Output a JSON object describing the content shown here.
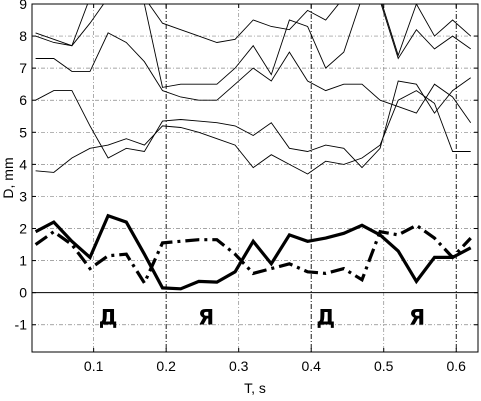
{
  "chart_data": {
    "type": "line",
    "title": "",
    "xlabel": "T, s",
    "ylabel": "D, mm",
    "xlim": [
      0.015,
      0.63
    ],
    "ylim": [
      -1.85,
      9
    ],
    "grid": true,
    "xticks": [
      0.1,
      0.2,
      0.3,
      0.4,
      0.5,
      0.6
    ],
    "xtick_labels": [
      "0.1",
      "0.2",
      "0.3",
      "0.4",
      "0.5",
      "0.6"
    ],
    "yticks": [
      -1,
      0,
      1,
      2,
      3,
      4,
      5,
      6,
      7,
      8,
      9
    ],
    "ytick_labels": [
      "-1",
      "0",
      "1",
      "2",
      "3",
      "4",
      "5",
      "6",
      "7",
      "8",
      "9"
    ],
    "vlines": [
      0.2,
      0.4,
      0.6
    ],
    "hline": 0,
    "annotations": [
      {
        "text": "Д",
        "x": 0.12,
        "y": -0.75
      },
      {
        "text": "Я",
        "x": 0.255,
        "y": -0.75
      },
      {
        "text": "Д",
        "x": 0.42,
        "y": -0.75
      },
      {
        "text": "Я",
        "x": 0.546,
        "y": -0.75
      }
    ],
    "series": [
      {
        "style": "solid-thick",
        "x": [
          0.02,
          0.045,
          0.07,
          0.095,
          0.12,
          0.145,
          0.17,
          0.195,
          0.22,
          0.245,
          0.27,
          0.295,
          0.32,
          0.345,
          0.37,
          0.395,
          0.42,
          0.445,
          0.47,
          0.495,
          0.52,
          0.545,
          0.57,
          0.595,
          0.62
        ],
        "y": [
          1.9,
          2.2,
          1.6,
          1.1,
          2.4,
          2.2,
          1.2,
          0.15,
          0.12,
          0.35,
          0.33,
          0.65,
          1.6,
          0.9,
          1.8,
          1.6,
          1.7,
          1.85,
          2.1,
          1.8,
          1.3,
          0.35,
          1.1,
          1.1,
          1.4
        ]
      },
      {
        "style": "dashdot-thick",
        "x": [
          0.02,
          0.045,
          0.07,
          0.095,
          0.12,
          0.145,
          0.17,
          0.195,
          0.22,
          0.245,
          0.27,
          0.295,
          0.32,
          0.345,
          0.37,
          0.395,
          0.42,
          0.445,
          0.47,
          0.495,
          0.52,
          0.545,
          0.57,
          0.595,
          0.62
        ],
        "y": [
          1.5,
          1.9,
          1.5,
          0.75,
          1.15,
          1.2,
          0.3,
          1.55,
          1.6,
          1.65,
          1.65,
          1.2,
          0.6,
          0.75,
          0.9,
          0.65,
          0.6,
          0.75,
          0.4,
          1.9,
          1.8,
          2.1,
          1.7,
          1.1,
          1.7
        ]
      },
      {
        "style": "thin",
        "x": [
          0.02,
          0.045,
          0.07,
          0.095,
          0.12,
          0.145,
          0.17,
          0.195,
          0.22,
          0.245,
          0.27,
          0.295,
          0.32,
          0.345,
          0.37,
          0.395,
          0.42,
          0.445,
          0.47,
          0.495,
          0.52,
          0.545,
          0.57,
          0.595,
          0.62
        ],
        "y": [
          3.8,
          3.75,
          4.2,
          4.5,
          4.6,
          4.8,
          4.6,
          5.2,
          5.15,
          5.0,
          4.8,
          4.6,
          3.9,
          4.3,
          4.0,
          3.7,
          4.1,
          4.0,
          4.2,
          4.6,
          6.0,
          6.3,
          5.9,
          4.4,
          4.4
        ]
      },
      {
        "style": "thin",
        "x": [
          0.02,
          0.045,
          0.07,
          0.095,
          0.12,
          0.145,
          0.17,
          0.195,
          0.22,
          0.245,
          0.27,
          0.295,
          0.32,
          0.345,
          0.37,
          0.395,
          0.42,
          0.445,
          0.47,
          0.495,
          0.52,
          0.545,
          0.57,
          0.595,
          0.62
        ],
        "y": [
          6.0,
          6.3,
          6.3,
          5.2,
          4.2,
          4.5,
          4.4,
          5.35,
          5.4,
          5.35,
          5.3,
          5.2,
          4.9,
          5.3,
          4.5,
          4.4,
          4.6,
          4.5,
          3.9,
          4.5,
          6.6,
          6.5,
          5.6,
          6.3,
          6.7
        ]
      },
      {
        "style": "thin",
        "x": [
          0.02,
          0.045,
          0.07,
          0.095,
          0.12,
          0.145,
          0.17,
          0.195,
          0.22,
          0.245,
          0.27,
          0.295,
          0.32,
          0.345,
          0.37,
          0.395,
          0.42,
          0.445,
          0.47,
          0.495,
          0.52,
          0.545,
          0.57,
          0.595,
          0.62
        ],
        "y": [
          7.3,
          7.3,
          6.9,
          6.9,
          8.1,
          7.8,
          7.2,
          6.3,
          6.1,
          6.0,
          6.0,
          6.5,
          7.0,
          6.6,
          7.5,
          6.6,
          6.3,
          6.5,
          6.5,
          6.0,
          5.8,
          5.6,
          6.5,
          6.1,
          5.3
        ]
      },
      {
        "style": "thin",
        "x": [
          0.02,
          0.045,
          0.07,
          0.095,
          0.12,
          0.145,
          0.17,
          0.195,
          0.22,
          0.245,
          0.27,
          0.295,
          0.32,
          0.345,
          0.37,
          0.395,
          0.42,
          0.445,
          0.47,
          0.495,
          0.52,
          0.545,
          0.57,
          0.595,
          0.62
        ],
        "y": [
          8.0,
          7.8,
          7.7,
          8.4,
          9.2,
          9.0,
          9.0,
          6.4,
          6.5,
          6.5,
          6.5,
          7.0,
          7.7,
          6.8,
          8.5,
          8.3,
          7.0,
          7.5,
          9.2,
          9.1,
          7.3,
          8.2,
          7.6,
          8.0,
          7.6
        ]
      },
      {
        "style": "thin",
        "x": [
          0.02,
          0.045,
          0.07,
          0.095,
          0.12,
          0.145,
          0.17,
          0.195,
          0.22,
          0.245,
          0.27,
          0.295,
          0.32,
          0.345,
          0.37,
          0.395,
          0.42,
          0.445,
          0.47,
          0.495,
          0.52,
          0.545,
          0.57,
          0.595,
          0.62
        ],
        "y": [
          8.1,
          7.9,
          7.7,
          9.2,
          9.2,
          9.2,
          9.2,
          8.4,
          8.2,
          8.0,
          7.8,
          7.9,
          8.5,
          8.3,
          8.2,
          8.8,
          8.5,
          9.2,
          9.2,
          9.2,
          7.4,
          9.0,
          8.0,
          8.5,
          8.0
        ]
      }
    ]
  }
}
